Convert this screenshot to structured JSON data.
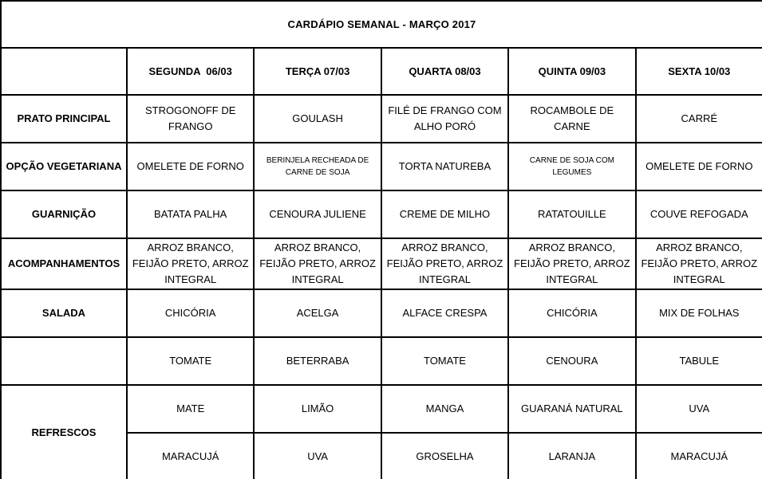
{
  "document": {
    "title": "CARDÁPIO SEMANAL - MARÇO 2017"
  },
  "table": {
    "corner_label": "",
    "columns": [
      "SEGUNDA  06/03",
      "TERÇA 07/03",
      "QUARTA 08/03",
      "QUINTA 09/03",
      "SEXTA 10/03"
    ],
    "rows": [
      {
        "label": "PRATO PRINCIPAL",
        "cells": [
          "STROGONOFF DE FRANGO",
          "GOULASH",
          "FILÉ DE FRANGO COM ALHO PORÓ",
          "ROCAMBOLE DE CARNE",
          "CARRÉ"
        ]
      },
      {
        "label": "OPÇÃO VEGETARIANA",
        "cells": [
          "OMELETE DE FORNO",
          "BERINJELA RECHEADA DE CARNE DE SOJA",
          "TORTA NATUREBA",
          "CARNE DE SOJA COM LEGUMES",
          "OMELETE DE FORNO"
        ]
      },
      {
        "label": "GUARNIÇÃO",
        "cells": [
          "BATATA PALHA",
          "CENOURA JULIENE",
          "CREME DE MILHO",
          "RATATOUILLE",
          "COUVE REFOGADA"
        ]
      },
      {
        "label": "ACOMPANHAMENTOS",
        "cells": [
          "ARROZ BRANCO, FEIJÃO PRETO, ARROZ INTEGRAL",
          "ARROZ BRANCO, FEIJÃO PRETO, ARROZ INTEGRAL",
          "ARROZ BRANCO, FEIJÃO PRETO, ARROZ INTEGRAL",
          "ARROZ BRANCO, FEIJÃO PRETO, ARROZ INTEGRAL",
          "ARROZ BRANCO, FEIJÃO PRETO, ARROZ INTEGRAL"
        ]
      },
      {
        "label": "SALADA",
        "cells": [
          "CHICÓRIA",
          "ACELGA",
          "ALFACE CRESPA",
          "CHICÓRIA",
          "MIX DE FOLHAS"
        ]
      },
      {
        "label": "",
        "cells": [
          "TOMATE",
          "BETERRABA",
          "TOMATE",
          "CENOURA",
          "TABULE"
        ]
      },
      {
        "label": "REFRESCOS",
        "cells": [
          "MATE",
          "LIMÃO",
          "MANGA",
          "GUARANÁ NATURAL",
          "UVA"
        ]
      },
      {
        "label": "",
        "cells": [
          "MARACUJÁ",
          "UVA",
          "GROSELHA",
          "LARANJA",
          "MARACUJÁ"
        ]
      }
    ]
  },
  "colors": {
    "border": "#000000",
    "text": "#000000",
    "background": "#ffffff"
  }
}
